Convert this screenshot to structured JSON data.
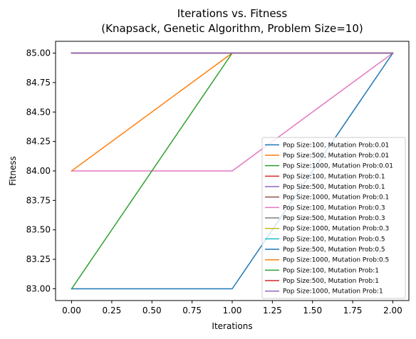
{
  "chart_data": {
    "type": "line",
    "title": "Iterations vs. Fitness\n(Knapsack, Genetic Algorithm, Problem Size=10)",
    "xlabel": "Iterations",
    "ylabel": "Fitness",
    "xlim": [
      -0.1,
      2.1
    ],
    "ylim": [
      82.9,
      85.1
    ],
    "x_ticks": [
      "0.00",
      "0.25",
      "0.50",
      "0.75",
      "1.00",
      "1.25",
      "1.50",
      "1.75",
      "2.00"
    ],
    "y_ticks": [
      "83.00",
      "83.25",
      "83.50",
      "83.75",
      "84.00",
      "84.25",
      "84.50",
      "84.75",
      "85.00"
    ],
    "grid": false,
    "legend_position": "lower-right",
    "x": [
      0,
      1,
      2
    ],
    "series": [
      {
        "name": "Pop Size:100, Mutation Prob:0.01",
        "color": "#1f77b4",
        "values": [
          85,
          85,
          85
        ]
      },
      {
        "name": "Pop Size:500, Mutation Prob:0.01",
        "color": "#ff7f0e",
        "values": [
          85,
          85,
          85
        ]
      },
      {
        "name": "Pop Size:1000, Mutation Prob:0.01",
        "color": "#2ca02c",
        "values": [
          85,
          85,
          85
        ]
      },
      {
        "name": "Pop Size:100, Mutation Prob:0.1",
        "color": "#d62728",
        "values": [
          85,
          85,
          85
        ]
      },
      {
        "name": "Pop Size:500, Mutation Prob:0.1",
        "color": "#9467bd",
        "values": [
          85,
          85,
          85
        ]
      },
      {
        "name": "Pop Size:1000, Mutation Prob:0.1",
        "color": "#8c564b",
        "values": [
          85,
          85,
          85
        ]
      },
      {
        "name": "Pop Size:100, Mutation Prob:0.3",
        "color": "#e377c2",
        "values": [
          84,
          84,
          85
        ]
      },
      {
        "name": "Pop Size:500, Mutation Prob:0.3",
        "color": "#7f7f7f",
        "values": [
          85,
          85,
          85
        ]
      },
      {
        "name": "Pop Size:1000, Mutation Prob:0.3",
        "color": "#bcbd22",
        "values": [
          85,
          85,
          85
        ]
      },
      {
        "name": "Pop Size:100, Mutation Prob:0.5",
        "color": "#17becf",
        "values": [
          85,
          85,
          85
        ]
      },
      {
        "name": "Pop Size:500, Mutation Prob:0.5",
        "color": "#1f77b4",
        "values": [
          83,
          83,
          85
        ]
      },
      {
        "name": "Pop Size:1000, Mutation Prob:0.5",
        "color": "#ff7f0e",
        "values": [
          84,
          85,
          85
        ]
      },
      {
        "name": "Pop Size:100, Mutation Prob:1",
        "color": "#2ca02c",
        "values": [
          83,
          85,
          85
        ]
      },
      {
        "name": "Pop Size:500, Mutation Prob:1",
        "color": "#d62728",
        "values": [
          85,
          85,
          85
        ]
      },
      {
        "name": "Pop Size:1000, Mutation Prob:1",
        "color": "#9467bd",
        "values": [
          85,
          85,
          85
        ]
      }
    ]
  }
}
